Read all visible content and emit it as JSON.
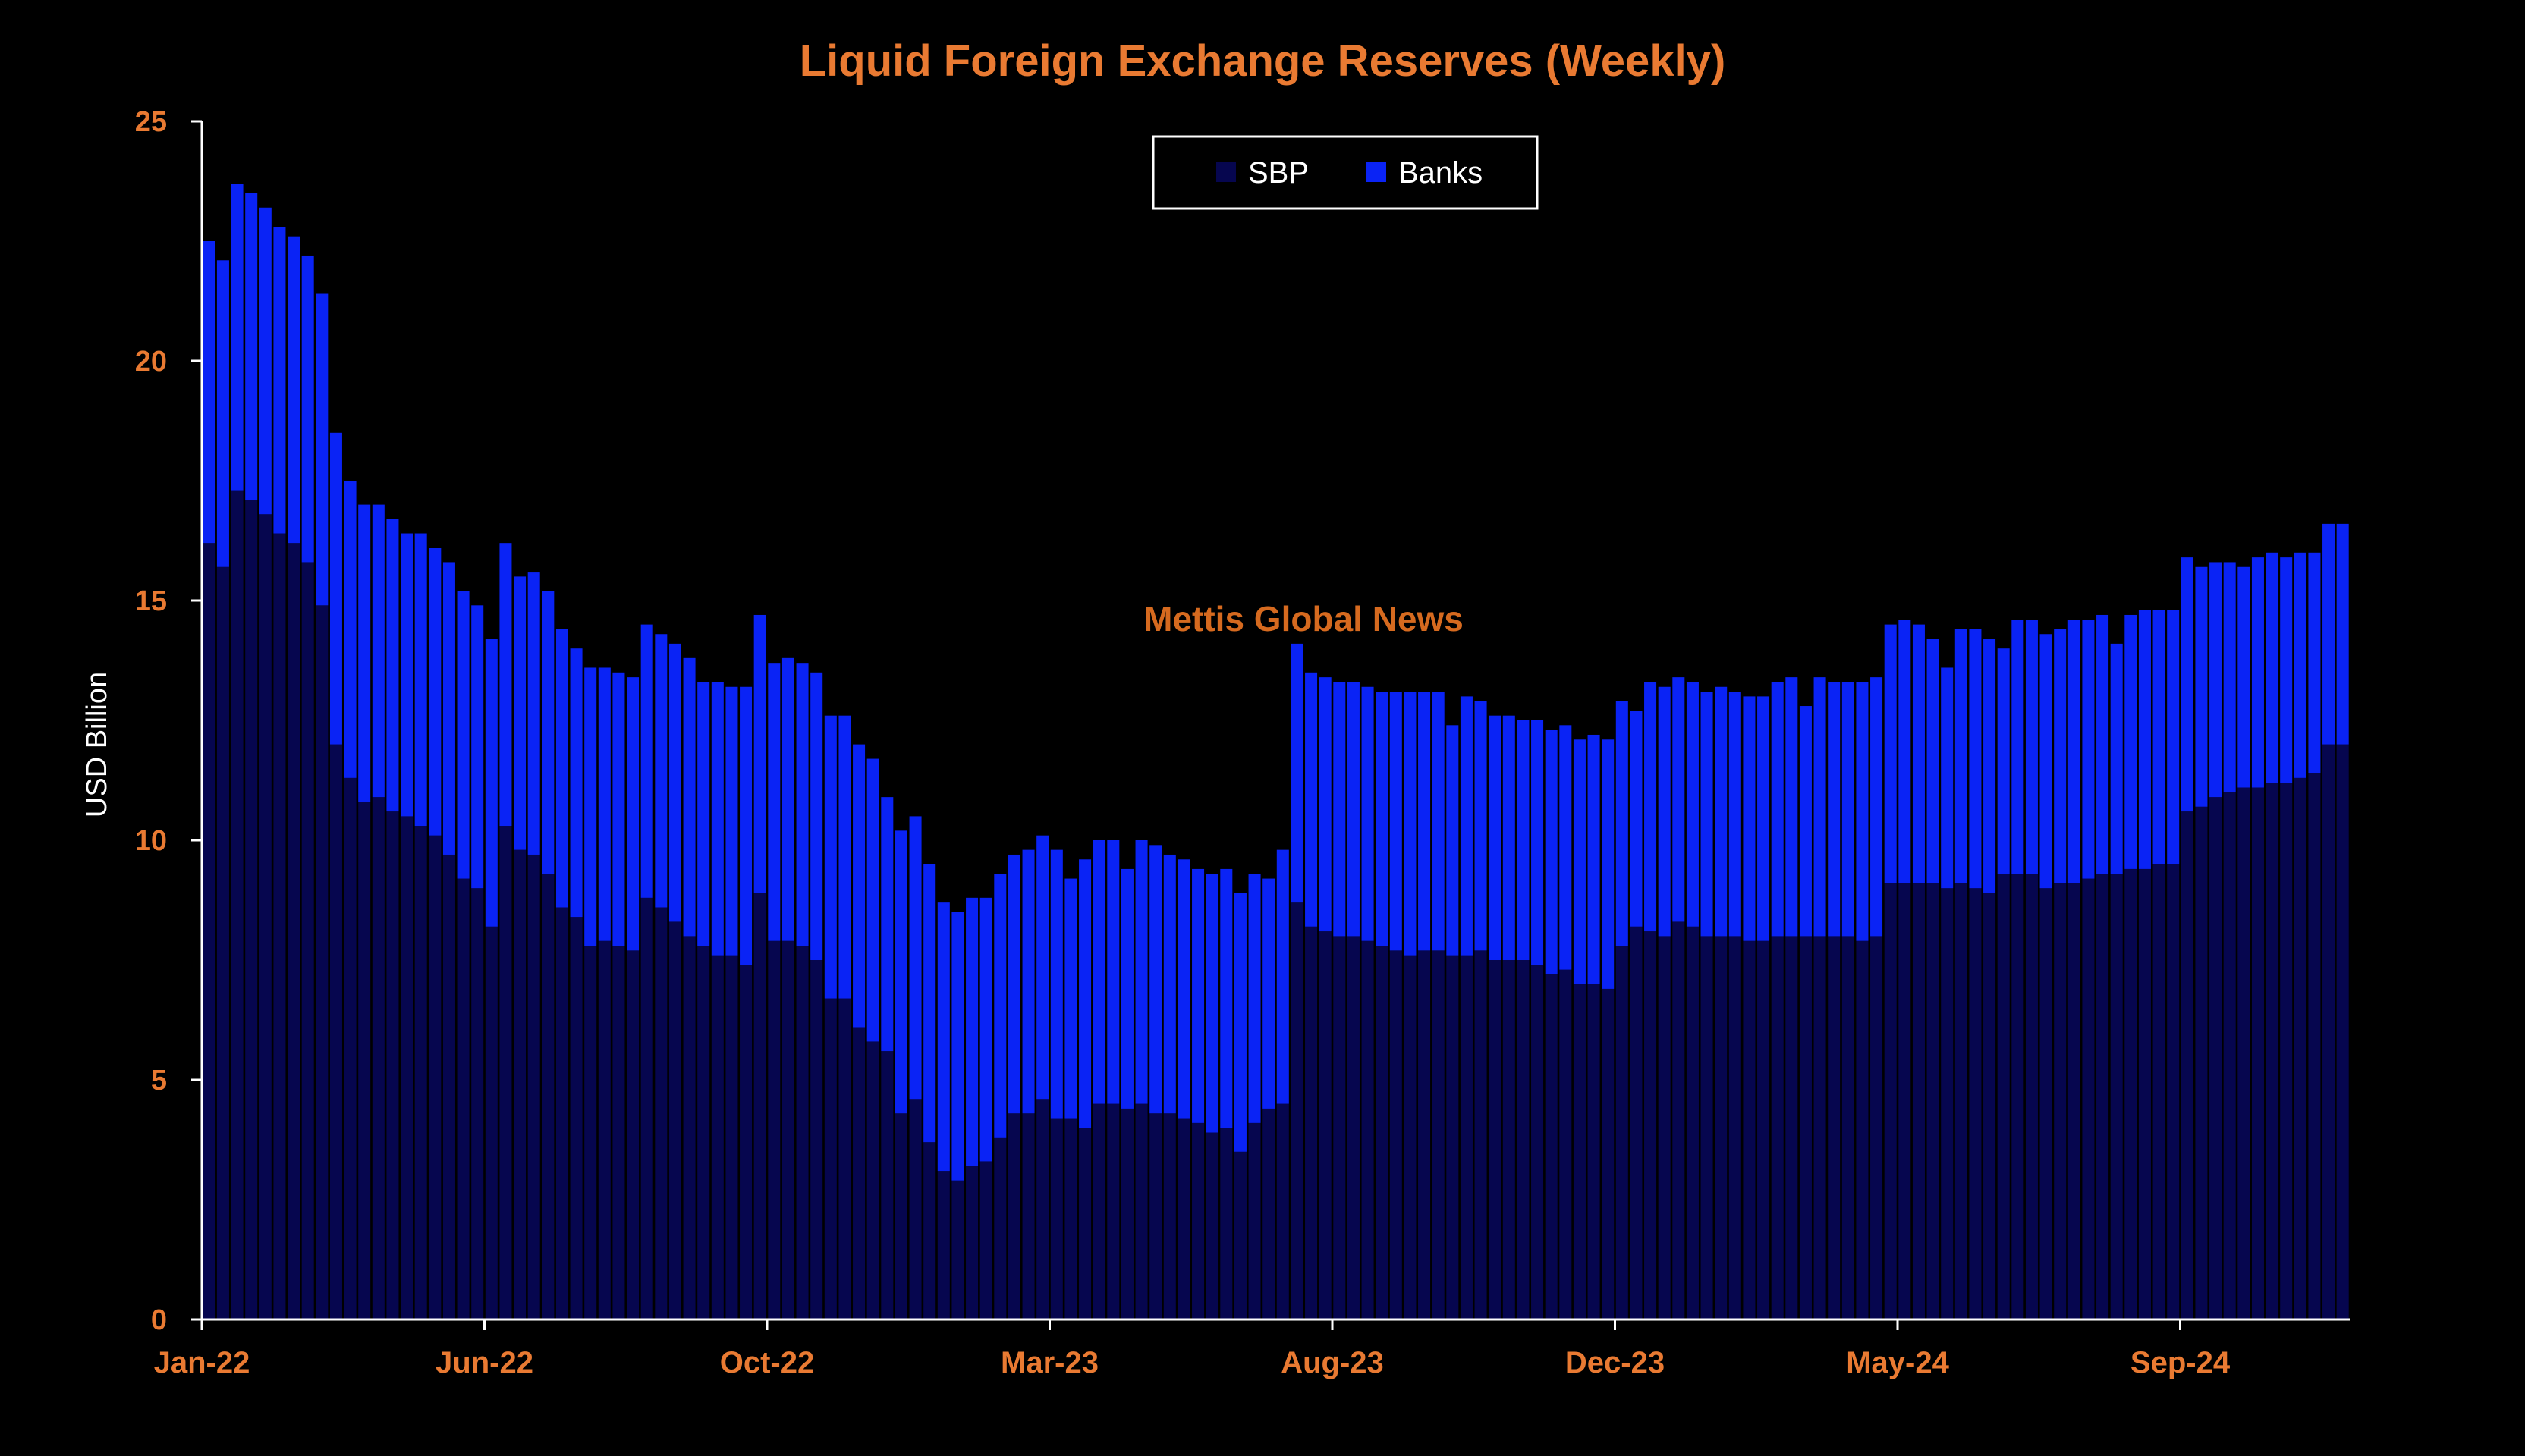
{
  "chart_data": {
    "type": "bar",
    "stacked": true,
    "title": "Liquid Foreign Exchange Reserves (Weekly)",
    "ylabel": "USD Billion",
    "xlabel": "",
    "ylim": [
      0,
      25
    ],
    "yticks": [
      0,
      5,
      10,
      15,
      20,
      25
    ],
    "xtick_labels": [
      {
        "label": "Jan-22",
        "index": 0
      },
      {
        "label": "Jun-22",
        "index": 20
      },
      {
        "label": "Oct-22",
        "index": 40
      },
      {
        "label": "Mar-23",
        "index": 60
      },
      {
        "label": "Aug-23",
        "index": 80
      },
      {
        "label": "Dec-23",
        "index": 100
      },
      {
        "label": "May-24",
        "index": 120
      },
      {
        "label": "Sep-24",
        "index": 140
      }
    ],
    "annotation": "Mettis Global News",
    "legend_position": "top-center",
    "grid": false,
    "series": [
      {
        "name": "SBP",
        "color": "#06064f",
        "values": [
          16.2,
          15.7,
          17.3,
          17.1,
          16.8,
          16.4,
          16.2,
          15.8,
          14.9,
          12.0,
          11.3,
          10.8,
          10.9,
          10.6,
          10.5,
          10.3,
          10.1,
          9.7,
          9.2,
          9.0,
          8.2,
          10.3,
          9.8,
          9.7,
          9.3,
          8.6,
          8.4,
          7.8,
          7.9,
          7.8,
          7.7,
          8.8,
          8.6,
          8.3,
          8.0,
          7.8,
          7.6,
          7.6,
          7.4,
          8.9,
          7.9,
          7.9,
          7.8,
          7.5,
          6.7,
          6.7,
          6.1,
          5.8,
          5.6,
          4.3,
          4.6,
          3.7,
          3.1,
          2.9,
          3.2,
          3.3,
          3.8,
          4.3,
          4.3,
          4.6,
          4.2,
          4.2,
          4.0,
          4.5,
          4.5,
          4.4,
          4.5,
          4.3,
          4.3,
          4.2,
          4.1,
          3.9,
          4.0,
          3.5,
          4.1,
          4.4,
          4.5,
          8.7,
          8.2,
          8.1,
          8.0,
          8.0,
          7.9,
          7.8,
          7.7,
          7.6,
          7.7,
          7.7,
          7.6,
          7.6,
          7.7,
          7.5,
          7.5,
          7.5,
          7.4,
          7.2,
          7.3,
          7.0,
          7.0,
          6.9,
          7.8,
          8.2,
          8.1,
          8.0,
          8.3,
          8.2,
          8.0,
          8.0,
          8.0,
          7.9,
          7.9,
          8.0,
          8.0,
          8.0,
          8.0,
          8.0,
          8.0,
          7.9,
          8.0,
          9.1,
          9.1,
          9.1,
          9.1,
          9.0,
          9.1,
          9.0,
          8.9,
          9.3,
          9.3,
          9.3,
          9.0,
          9.1,
          9.1,
          9.2,
          9.3,
          9.3,
          9.4,
          9.4,
          9.5,
          9.5,
          10.6,
          10.7,
          10.9,
          11.0,
          11.1,
          11.1,
          11.2,
          11.2,
          11.3,
          11.4,
          12.0,
          12.0
        ]
      },
      {
        "name": "Banks",
        "color": "#0a23f5",
        "values": [
          6.3,
          6.4,
          6.4,
          6.4,
          6.4,
          6.4,
          6.4,
          6.4,
          6.5,
          6.5,
          6.2,
          6.2,
          6.1,
          6.1,
          5.9,
          6.1,
          6.0,
          6.1,
          6.0,
          5.9,
          6.0,
          5.9,
          5.7,
          5.9,
          5.9,
          5.8,
          5.6,
          5.8,
          5.7,
          5.7,
          5.7,
          5.7,
          5.7,
          5.8,
          5.8,
          5.5,
          5.7,
          5.6,
          5.8,
          5.8,
          5.8,
          5.9,
          5.9,
          6.0,
          5.9,
          5.9,
          5.9,
          5.9,
          5.3,
          5.9,
          5.9,
          5.8,
          5.6,
          5.6,
          5.6,
          5.5,
          5.5,
          5.4,
          5.5,
          5.5,
          5.6,
          5.0,
          5.6,
          5.5,
          5.5,
          5.0,
          5.5,
          5.6,
          5.4,
          5.4,
          5.3,
          5.4,
          5.4,
          5.4,
          5.2,
          4.8,
          5.3,
          5.4,
          5.3,
          5.3,
          5.3,
          5.3,
          5.3,
          5.3,
          5.4,
          5.5,
          5.4,
          5.4,
          4.8,
          5.4,
          5.2,
          5.1,
          5.1,
          5.0,
          5.1,
          5.1,
          5.1,
          5.1,
          5.2,
          5.2,
          5.1,
          4.5,
          5.2,
          5.2,
          5.1,
          5.1,
          5.1,
          5.2,
          5.1,
          5.1,
          5.1,
          5.3,
          5.4,
          4.8,
          5.4,
          5.3,
          5.3,
          5.4,
          5.4,
          5.4,
          5.5,
          5.4,
          5.1,
          4.6,
          5.3,
          5.4,
          5.3,
          4.7,
          5.3,
          5.3,
          5.3,
          5.3,
          5.5,
          5.4,
          5.4,
          4.8,
          5.3,
          5.4,
          5.3,
          5.3,
          5.3,
          5.0,
          4.9,
          4.8,
          4.6,
          4.8,
          4.8,
          4.7,
          4.7,
          4.6,
          4.6,
          4.6
        ]
      }
    ]
  }
}
